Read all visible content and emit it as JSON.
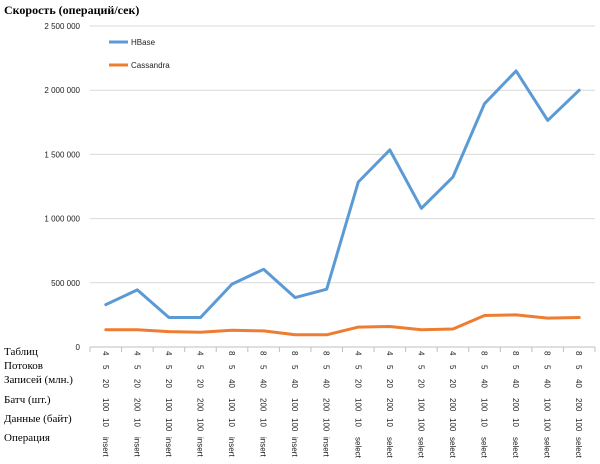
{
  "chart_data": {
    "type": "line",
    "title": "Скорость (операций/сек)",
    "ylim": [
      0,
      2500000
    ],
    "yticks": [
      "0",
      "500 000",
      "1 000 000",
      "1 500 000",
      "2 000 000",
      "2 500 000"
    ],
    "yticks_values": [
      0,
      500000,
      1000000,
      1500000,
      2000000,
      2500000
    ],
    "grid": true,
    "legend_position": "top-left",
    "table_rows": [
      "Таблиц",
      "Потоков",
      "Записей (млн.)",
      "Батч (шт.)",
      "Данные (байт)",
      "Операция"
    ],
    "categories": [
      {
        "tables": "4",
        "threads": "5",
        "records": "20",
        "batch": "100",
        "data": "10",
        "op": "insert"
      },
      {
        "tables": "4",
        "threads": "5",
        "records": "20",
        "batch": "200",
        "data": "10",
        "op": "insert"
      },
      {
        "tables": "4",
        "threads": "5",
        "records": "20",
        "batch": "100",
        "data": "100",
        "op": "insert"
      },
      {
        "tables": "4",
        "threads": "5",
        "records": "20",
        "batch": "200",
        "data": "100",
        "op": "insert"
      },
      {
        "tables": "8",
        "threads": "5",
        "records": "40",
        "batch": "100",
        "data": "10",
        "op": "insert"
      },
      {
        "tables": "8",
        "threads": "5",
        "records": "40",
        "batch": "200",
        "data": "10",
        "op": "insert"
      },
      {
        "tables": "8",
        "threads": "5",
        "records": "40",
        "batch": "100",
        "data": "100",
        "op": "insert"
      },
      {
        "tables": "8",
        "threads": "5",
        "records": "40",
        "batch": "200",
        "data": "100",
        "op": "insert"
      },
      {
        "tables": "4",
        "threads": "5",
        "records": "20",
        "batch": "100",
        "data": "10",
        "op": "select"
      },
      {
        "tables": "4",
        "threads": "5",
        "records": "20",
        "batch": "200",
        "data": "10",
        "op": "select"
      },
      {
        "tables": "4",
        "threads": "5",
        "records": "20",
        "batch": "100",
        "data": "100",
        "op": "select"
      },
      {
        "tables": "4",
        "threads": "5",
        "records": "20",
        "batch": "200",
        "data": "100",
        "op": "select"
      },
      {
        "tables": "8",
        "threads": "5",
        "records": "40",
        "batch": "100",
        "data": "10",
        "op": "select"
      },
      {
        "tables": "8",
        "threads": "5",
        "records": "40",
        "batch": "200",
        "data": "10",
        "op": "select"
      },
      {
        "tables": "8",
        "threads": "5",
        "records": "40",
        "batch": "100",
        "data": "100",
        "op": "select"
      },
      {
        "tables": "8",
        "threads": "5",
        "records": "40",
        "batch": "200",
        "data": "100",
        "op": "select"
      }
    ],
    "series": [
      {
        "name": "HBase",
        "color": "#5B9BD5",
        "values": [
          330000,
          445000,
          230000,
          230000,
          490000,
          605000,
          385000,
          450000,
          1285000,
          1535000,
          1080000,
          1325000,
          1895000,
          2150000,
          1765000,
          2000000
        ]
      },
      {
        "name": "Cassandra",
        "color": "#ED7D31",
        "values": [
          135000,
          135000,
          120000,
          115000,
          130000,
          125000,
          95000,
          95000,
          155000,
          160000,
          135000,
          140000,
          245000,
          250000,
          225000,
          230000
        ]
      }
    ]
  }
}
